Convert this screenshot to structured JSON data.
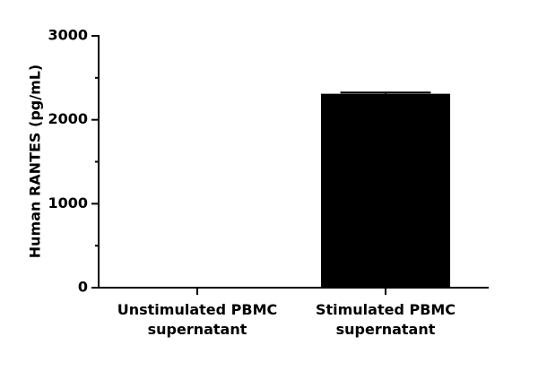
{
  "chart_data": {
    "type": "bar",
    "y_label": "Human RANTES (pg/mL)",
    "categories": [
      "Unstimulated PBMC supernatant",
      "Stimulated PBMC supernatant"
    ],
    "values": [
      0,
      2310
    ],
    "errors": [
      0,
      15
    ],
    "color": "#000000",
    "ylim": [
      0,
      3000
    ],
    "yticks": [
      0,
      1000,
      2000,
      3000
    ],
    "minor_yticks": [
      500,
      1500,
      2500
    ],
    "grid": false
  }
}
